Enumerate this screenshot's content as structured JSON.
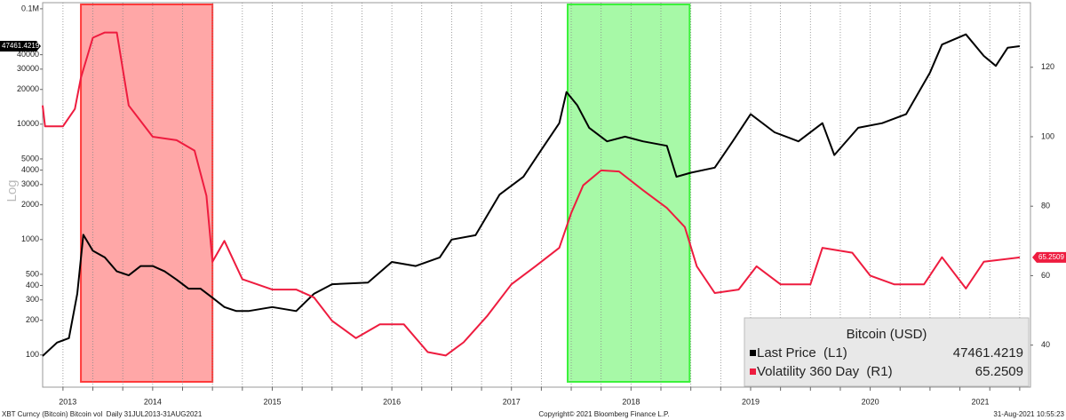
{
  "chart_data": {
    "type": "line",
    "title": "Bitcoin (USD)",
    "ylabel": "Log",
    "log_scale": true,
    "grid": "x",
    "legend": "lower right",
    "xlim": [
      2013.58,
      2021.84
    ],
    "xticks": [
      {
        "value": 2013.79,
        "label": "2013"
      },
      {
        "value": 2014.5,
        "label": "2014"
      },
      {
        "value": 2015.5,
        "label": "2015"
      },
      {
        "value": 2016.5,
        "label": "2016"
      },
      {
        "value": 2017.5,
        "label": "2017"
      },
      {
        "value": 2018.5,
        "label": "2018"
      },
      {
        "value": 2019.5,
        "label": "2019"
      },
      {
        "value": 2020.5,
        "label": "2020"
      },
      {
        "value": 2021.42,
        "label": "2021"
      }
    ],
    "xgrid": [
      2013.75,
      2014,
      2014.25,
      2014.5,
      2014.75,
      2015,
      2015.25,
      2015.5,
      2015.75,
      2016,
      2016.25,
      2016.5,
      2016.75,
      2017,
      2017.25,
      2017.5,
      2017.75,
      2018,
      2018.25,
      2018.5,
      2018.75,
      2019,
      2019.25,
      2019.5,
      2019.75,
      2020,
      2020.25,
      2020.5,
      2020.75,
      2021,
      2021.25,
      2021.5,
      2021.75
    ],
    "ylim": [
      52.6,
      113000
    ],
    "yticks": [
      100,
      200,
      300,
      400,
      500,
      1000,
      2000,
      3000,
      4000,
      5000,
      10000,
      20000,
      30000,
      40000,
      {
        "value": 100000,
        "label": "0.1M"
      }
    ],
    "y2lim": [
      27.9,
      138.6
    ],
    "y2ticks": [
      40,
      60,
      80,
      100,
      120
    ],
    "highlights": [
      {
        "x": [
          2013.9,
          2015.0
        ],
        "color": "#ff3b3b"
      },
      {
        "x": [
          2017.97,
          2018.99
        ],
        "color": "#3cf23c"
      }
    ],
    "series": [
      {
        "name": "Last Price  (L1)",
        "color": "#000000",
        "axis": "y",
        "last_value": 47461.4219,
        "x": [
          2013.58,
          2013.7,
          2013.8,
          2013.87,
          2013.92,
          2014.0,
          2014.1,
          2014.2,
          2014.3,
          2014.4,
          2014.5,
          2014.6,
          2014.7,
          2014.8,
          2014.9,
          2015.0,
          2015.1,
          2015.2,
          2015.3,
          2015.5,
          2015.7,
          2015.85,
          2016.0,
          2016.3,
          2016.5,
          2016.7,
          2016.9,
          2017.0,
          2017.2,
          2017.4,
          2017.6,
          2017.75,
          2017.9,
          2017.96,
          2018.05,
          2018.15,
          2018.3,
          2018.45,
          2018.6,
          2018.8,
          2018.88,
          2019.0,
          2019.2,
          2019.35,
          2019.5,
          2019.7,
          2019.9,
          2020.1,
          2020.2,
          2020.4,
          2020.6,
          2020.8,
          2021.0,
          2021.1,
          2021.3,
          2021.45,
          2021.55,
          2021.65,
          2021.75
        ],
        "values": [
          98,
          128,
          140,
          340,
          1100,
          800,
          700,
          530,
          490,
          590,
          590,
          530,
          450,
          375,
          375,
          313,
          260,
          240,
          240,
          260,
          240,
          340,
          410,
          424,
          640,
          590,
          700,
          1000,
          1090,
          2450,
          3500,
          6000,
          10200,
          19000,
          14600,
          9300,
          7100,
          7800,
          7100,
          6500,
          3500,
          3800,
          4200,
          7100,
          12200,
          8500,
          7100,
          10200,
          5400,
          9300,
          10200,
          12200,
          28000,
          49000,
          60000,
          39000,
          32000,
          46000,
          47461
        ]
      },
      {
        "name": "Volatility 360 Day  (R1)",
        "color": "#ee1c3f",
        "axis": "y2",
        "last_value": 65.2509,
        "x": [
          2013.58,
          2013.6,
          2013.75,
          2013.85,
          2013.9,
          2014.0,
          2014.1,
          2014.2,
          2014.3,
          2014.5,
          2014.7,
          2014.85,
          2014.95,
          2015.0,
          2015.1,
          2015.25,
          2015.5,
          2015.7,
          2015.85,
          2016.0,
          2016.2,
          2016.4,
          2016.6,
          2016.8,
          2016.95,
          2017.1,
          2017.3,
          2017.5,
          2017.7,
          2017.9,
          2018.0,
          2018.1,
          2018.25,
          2018.4,
          2018.6,
          2018.8,
          2018.95,
          2019.05,
          2019.2,
          2019.4,
          2019.55,
          2019.75,
          2020.0,
          2020.1,
          2020.35,
          2020.5,
          2020.7,
          2020.95,
          2021.1,
          2021.3,
          2021.45,
          2021.75
        ],
        "values": [
          109,
          103,
          103,
          108,
          117,
          128.5,
          130,
          130,
          109,
          100,
          99,
          96,
          83,
          64,
          70,
          59,
          56,
          56,
          53.7,
          47,
          42,
          46,
          46,
          38,
          37,
          40.8,
          48.5,
          57.5,
          62.7,
          68,
          78,
          86,
          90.3,
          90,
          84.6,
          79.5,
          74,
          62.7,
          55,
          56,
          62.7,
          57.5,
          57.5,
          68,
          66.6,
          60,
          57.5,
          57.5,
          65.3,
          56.3,
          64,
          65.25
        ]
      }
    ],
    "footer": {
      "left": "XBT Curncy (Bitcoin) Bitcoin vol  Daily 31JUL2013-31AUG2021",
      "center": "Copyright© 2021 Bloomberg Finance L.P.",
      "right": "31-Aug-2021 10:55:23"
    }
  }
}
